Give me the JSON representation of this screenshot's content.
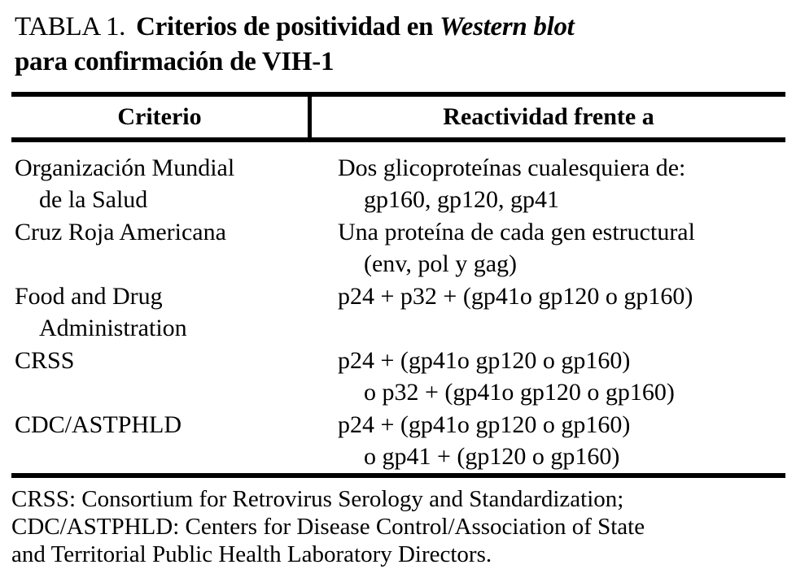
{
  "title": {
    "label": "TABLA 1.",
    "bold": "Criterios de positividad en",
    "italic": "Western blot",
    "line2": "para confirmación de VIH-1"
  },
  "table": {
    "headers": {
      "criterio": "Criterio",
      "reactividad": "Reactividad frente a"
    },
    "rows": [
      {
        "criterio_l1": "Organización Mundial",
        "criterio_l2": "de la Salud",
        "reactividad_l1": "Dos glicoproteínas cualesquiera de:",
        "reactividad_l2": "gp160, gp120, gp41"
      },
      {
        "criterio_l1": "Cruz Roja Americana",
        "criterio_l2": "",
        "reactividad_l1": "Una proteína de cada gen estructural",
        "reactividad_l2": "(env, pol y gag)"
      },
      {
        "criterio_l1": "Food and Drug",
        "criterio_l2": "Administration",
        "reactividad_l1": "p24 + p32 + (gp41o gp120 o gp160)",
        "reactividad_l2": ""
      },
      {
        "criterio_l1": "CRSS",
        "criterio_l2": "",
        "reactividad_l1": "p24 + (gp41o gp120 o gp160)",
        "reactividad_l2": "o p32 + (gp41o gp120 o gp160)"
      },
      {
        "criterio_l1": "CDC/ASTPHLD",
        "criterio_l2": "",
        "reactividad_l1": "p24 + (gp41o gp120 o gp160)",
        "reactividad_l2": "o gp41 + (gp120 o gp160)"
      }
    ]
  },
  "footnote": {
    "line1": "CRSS: Consortium for Retrovirus Serology and Standardization;",
    "line2": "CDC/ASTPHLD: Centers for Disease Control/Association of State",
    "line3": "and Territorial Public Health Laboratory Directors."
  },
  "colors": {
    "text": "#000000",
    "background": "#ffffff",
    "rule": "#000000"
  }
}
